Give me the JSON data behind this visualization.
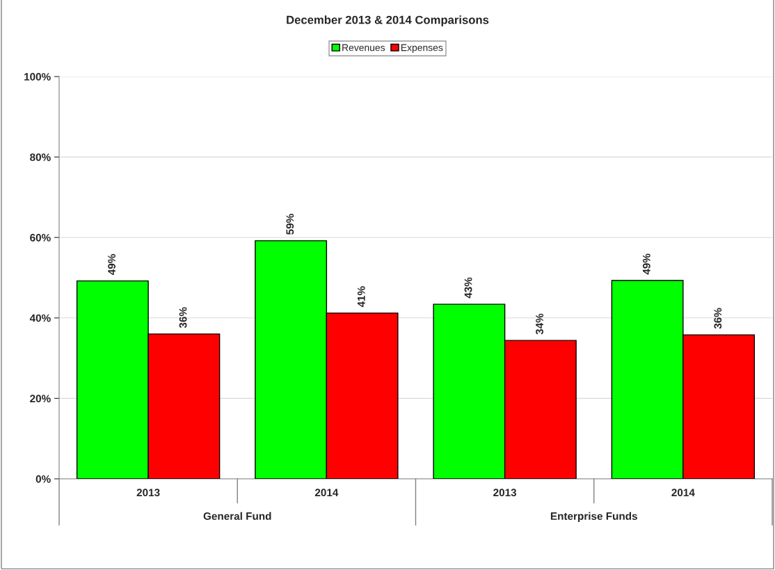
{
  "chart_data": {
    "type": "bar",
    "title": "December 2013 & 2014 Comparisons",
    "categories": [
      "2013",
      "2014",
      "2013",
      "2014"
    ],
    "annotations": [
      "General Fund",
      "Enterprise Funds"
    ],
    "series": [
      {
        "name": "Revenues",
        "color": "#00ff00",
        "values": [
          49.2,
          59.2,
          43.4,
          49.3
        ],
        "value_labels": [
          "49%",
          "59%",
          "43%",
          "49%"
        ]
      },
      {
        "name": "Expenses",
        "color": "#ff0000",
        "values": [
          36.0,
          41.2,
          34.4,
          35.8
        ],
        "value_labels": [
          "36%",
          "41%",
          "34%",
          "36%"
        ]
      }
    ],
    "ylim": [
      0,
      100
    ],
    "yticks": [
      {
        "value": 0,
        "label": "0%"
      },
      {
        "value": 20,
        "label": "20%"
      },
      {
        "value": 40,
        "label": "40%"
      },
      {
        "value": 60,
        "label": "60%"
      },
      {
        "value": 80,
        "label": "80%"
      },
      {
        "value": 100,
        "label": "100%"
      }
    ],
    "grid": "y",
    "legend": "top"
  }
}
